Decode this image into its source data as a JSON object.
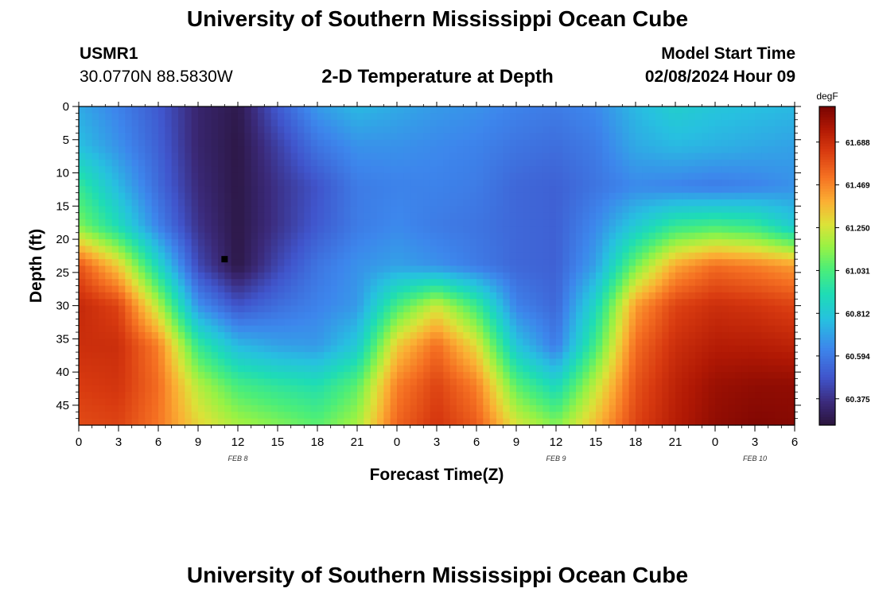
{
  "header": {
    "title": "University of Southern Mississippi Ocean Cube",
    "station_name": "USMR1",
    "station_coords": "30.0770N  88.5830W",
    "subtitle": "2-D Temperature at Depth",
    "start_label": "Model Start Time",
    "start_value": "02/08/2024 Hour 09"
  },
  "footer": {
    "title": "University of Southern Mississippi Ocean Cube"
  },
  "chart_data": {
    "type": "heatmap",
    "xlabel": "Forecast Time(Z)",
    "ylabel": "Depth (ft)",
    "x_ticks": [
      "0",
      "3",
      "6",
      "9",
      "12",
      "15",
      "18",
      "21",
      "0",
      "3",
      "6",
      "9",
      "12",
      "15",
      "18",
      "21",
      "0",
      "3",
      "6"
    ],
    "x_range_hours": [
      0,
      54
    ],
    "date_labels": [
      {
        "hour": 12,
        "text": "FEB 8"
      },
      {
        "hour": 36,
        "text": "FEB 9"
      },
      {
        "hour": 51,
        "text": "FEB 10"
      }
    ],
    "y_ticks": [
      0,
      5,
      10,
      15,
      20,
      25,
      30,
      35,
      40,
      45
    ],
    "y_range_ft": [
      0,
      48
    ],
    "y_inverted": true,
    "colorbar": {
      "unit": "degF",
      "ticks": [
        "61.688",
        "61.469",
        "61.250",
        "61.031",
        "60.812",
        "60.594",
        "60.375"
      ],
      "tick_values": [
        61.688,
        61.469,
        61.25,
        61.031,
        60.812,
        60.594,
        60.375
      ],
      "range": [
        60.24,
        61.87
      ]
    },
    "grid_hours": [
      0,
      3,
      6,
      9,
      12,
      15,
      18,
      21,
      24,
      27,
      30,
      33,
      36,
      39,
      42,
      45,
      48,
      51,
      54
    ],
    "grid_depths_ft": [
      0,
      6,
      12,
      18,
      24,
      30,
      36,
      42,
      48
    ],
    "values_degF": [
      [
        60.72,
        60.62,
        60.5,
        60.33,
        60.27,
        60.5,
        60.68,
        60.76,
        60.72,
        60.68,
        60.66,
        60.62,
        60.6,
        60.64,
        60.76,
        60.84,
        60.8,
        60.78,
        60.76
      ],
      [
        60.78,
        60.66,
        60.52,
        60.33,
        60.26,
        60.42,
        60.58,
        60.66,
        60.66,
        60.64,
        60.62,
        60.58,
        60.56,
        60.6,
        60.72,
        60.76,
        60.74,
        60.72,
        60.7
      ],
      [
        60.98,
        60.76,
        60.55,
        60.35,
        60.26,
        60.38,
        60.48,
        60.6,
        60.62,
        60.62,
        60.6,
        60.54,
        60.52,
        60.58,
        60.64,
        60.62,
        60.6,
        60.62,
        60.66
      ],
      [
        61.12,
        60.9,
        60.62,
        60.38,
        60.26,
        60.38,
        60.5,
        60.6,
        60.64,
        60.6,
        60.58,
        60.54,
        60.52,
        60.64,
        60.82,
        60.98,
        61.02,
        60.98,
        60.82
      ],
      [
        61.58,
        61.32,
        60.88,
        60.45,
        60.26,
        60.44,
        60.58,
        60.66,
        60.7,
        60.66,
        60.6,
        60.54,
        60.52,
        60.7,
        61.1,
        61.4,
        61.52,
        61.48,
        61.42
      ],
      [
        61.7,
        61.62,
        61.2,
        60.66,
        60.48,
        60.56,
        60.62,
        60.68,
        61.02,
        61.24,
        61.0,
        60.62,
        60.54,
        60.88,
        61.42,
        61.62,
        61.68,
        61.66,
        61.62
      ],
      [
        61.68,
        61.68,
        61.48,
        60.98,
        60.76,
        60.7,
        60.68,
        60.82,
        61.32,
        61.52,
        61.28,
        60.8,
        60.6,
        61.02,
        61.52,
        61.68,
        61.74,
        61.74,
        61.72
      ],
      [
        61.64,
        61.66,
        61.52,
        61.2,
        61.02,
        60.96,
        60.92,
        61.06,
        61.48,
        61.62,
        61.48,
        61.06,
        60.88,
        61.22,
        61.58,
        61.72,
        61.8,
        61.82,
        61.82
      ],
      [
        61.6,
        61.62,
        61.5,
        61.3,
        61.18,
        61.12,
        61.06,
        61.18,
        61.54,
        61.66,
        61.56,
        61.26,
        61.12,
        61.36,
        61.62,
        61.74,
        61.82,
        61.85,
        61.84
      ]
    ],
    "marker": {
      "hour": 11,
      "depth_ft": 23
    }
  }
}
